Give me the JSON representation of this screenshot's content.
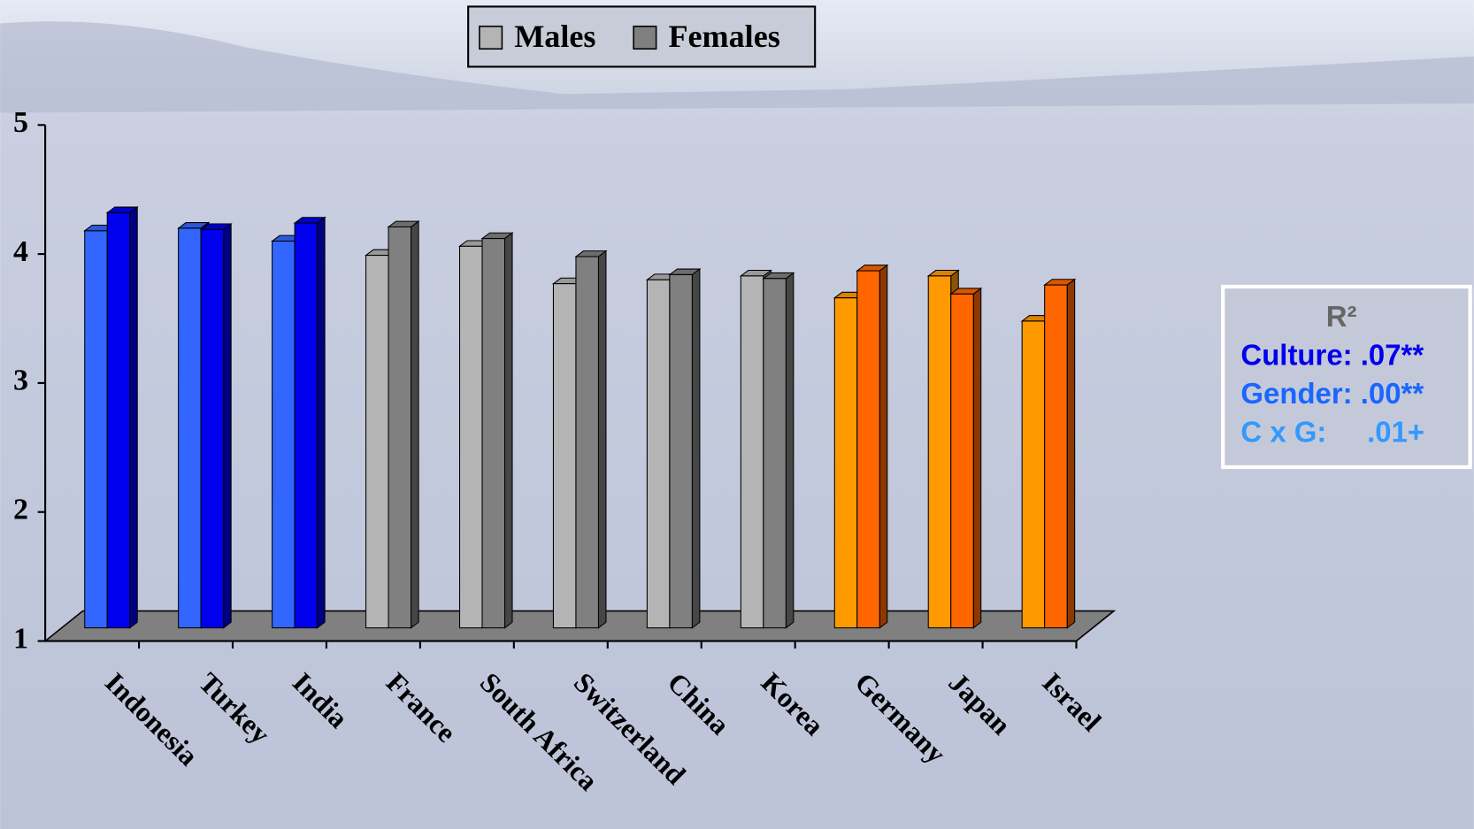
{
  "chart_data": {
    "type": "bar3d",
    "categories": [
      "Indonesia",
      "Turkey",
      "India",
      "France",
      "South Africa",
      "Switzerland",
      "China",
      "Korea",
      "Germany",
      "Japan",
      "Israel"
    ],
    "series": [
      {
        "name": "Males",
        "color": "#b4b4b4",
        "values": [
          4.18,
          4.2,
          4.1,
          3.99,
          4.06,
          3.77,
          3.8,
          3.83,
          3.66,
          3.83,
          3.48
        ],
        "colors": [
          "#3366ff",
          "#3366ff",
          "#3366ff",
          "#b4b4b4",
          "#b4b4b4",
          "#b4b4b4",
          "#b4b4b4",
          "#b4b4b4",
          "#ff9900",
          "#ff9900",
          "#ff9900"
        ]
      },
      {
        "name": "Females",
        "color": "#808080",
        "values": [
          4.32,
          4.19,
          4.24,
          4.21,
          4.12,
          3.98,
          3.84,
          3.81,
          3.87,
          3.69,
          3.76
        ],
        "colors": [
          "#0000ee",
          "#0000ee",
          "#0000ee",
          "#808080",
          "#808080",
          "#808080",
          "#808080",
          "#808080",
          "#ff6600",
          "#ff6600",
          "#ff6600"
        ]
      }
    ],
    "ylim": [
      1,
      5
    ],
    "yticks": [
      1,
      2,
      3,
      4,
      5
    ],
    "r2_box": {
      "title": "R²",
      "lines": [
        {
          "text": "Culture: .07**",
          "color": "#0000ee"
        },
        {
          "text": "Gender: .00**",
          "color": "#1a66ff"
        },
        {
          "text": "C x G:     .01+",
          "color": "#3399ff"
        }
      ]
    }
  }
}
